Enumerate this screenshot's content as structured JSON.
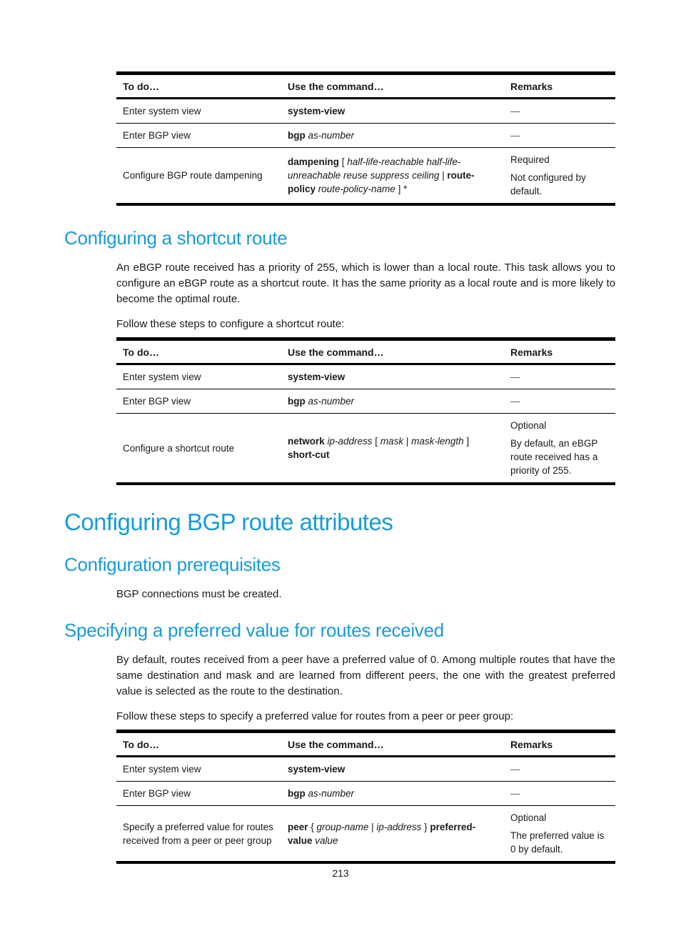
{
  "page_number": "213",
  "table_headers": {
    "todo": "To do…",
    "command": "Use the command…",
    "remarks": "Remarks"
  },
  "sections": {
    "shortcut_route": {
      "heading": "Configuring a shortcut route",
      "intro": "An eBGP route received has a priority of 255, which is lower than a local route. This task allows you to configure an eBGP route as a shortcut route. It has the same priority as a local route and is more likely to become the optimal route.",
      "steps_lead_in": "Follow these steps to configure a shortcut route:"
    },
    "bgp_route_attributes": {
      "heading": "Configuring BGP route attributes"
    },
    "configuration_prerequisites": {
      "heading": "Configuration prerequisites",
      "body": "BGP connections must be created."
    },
    "preferred_value": {
      "heading": "Specifying a preferred value for routes received",
      "intro": "By default, routes received from a peer have a preferred value of 0. Among multiple routes that have the same destination and mask and are learned from different peers, the one with the greatest preferred value is selected as the route to the destination.",
      "steps_lead_in": "Follow these steps to specify a preferred value for routes from a peer or peer group:"
    }
  },
  "tables": {
    "dampening": {
      "rows": [
        {
          "todo": "Enter system view",
          "command": [
            {
              "t": "system-view",
              "b": 1
            }
          ],
          "remarks": [
            "—"
          ]
        },
        {
          "todo": "Enter BGP view",
          "command": [
            {
              "t": "bgp ",
              "b": 1
            },
            {
              "t": "as-number",
              "i": 1
            }
          ],
          "remarks": [
            "—"
          ]
        },
        {
          "todo": "Configure BGP route dampening",
          "command": [
            {
              "t": "dampening ",
              "b": 1
            },
            {
              "t": "[ "
            },
            {
              "t": "half-life-reachable half-life-unreachable reuse suppress ceiling",
              "i": 1
            },
            {
              "t": " | "
            },
            {
              "t": "route-policy ",
              "b": 1
            },
            {
              "t": "route-policy-name",
              "i": 1
            },
            {
              "t": " ] *"
            }
          ],
          "remarks": [
            "Required",
            "Not configured by default."
          ]
        }
      ]
    },
    "shortcut": {
      "rows": [
        {
          "todo": "Enter system view",
          "command": [
            {
              "t": "system-view",
              "b": 1
            }
          ],
          "remarks": [
            "—"
          ]
        },
        {
          "todo": "Enter BGP view",
          "command": [
            {
              "t": "bgp ",
              "b": 1
            },
            {
              "t": "as-number",
              "i": 1
            }
          ],
          "remarks": [
            "—"
          ]
        },
        {
          "todo": "Configure a shortcut route",
          "command": [
            {
              "t": "network ",
              "b": 1
            },
            {
              "t": "ip-address",
              "i": 1
            },
            {
              "t": " [ "
            },
            {
              "t": "mask",
              "i": 1
            },
            {
              "t": " | "
            },
            {
              "t": "mask-length",
              "i": 1
            },
            {
              "t": " ] "
            },
            {
              "t": "short-cut",
              "b": 1
            }
          ],
          "remarks": [
            "Optional",
            "By default, an eBGP route received has a priority of 255."
          ]
        }
      ]
    },
    "preferred": {
      "rows": [
        {
          "todo": "Enter system view",
          "command": [
            {
              "t": "system-view",
              "b": 1
            }
          ],
          "remarks": [
            "—"
          ]
        },
        {
          "todo": "Enter BGP view",
          "command": [
            {
              "t": "bgp ",
              "b": 1
            },
            {
              "t": "as-number",
              "i": 1
            }
          ],
          "remarks": [
            "—"
          ]
        },
        {
          "todo": "Specify a preferred value for routes received from a peer or peer group",
          "command": [
            {
              "t": "peer ",
              "b": 1
            },
            {
              "t": "{ "
            },
            {
              "t": "group-name",
              "i": 1
            },
            {
              "t": " | "
            },
            {
              "t": "ip-address",
              "i": 1
            },
            {
              "t": " } "
            },
            {
              "t": "preferred-value ",
              "b": 1
            },
            {
              "t": "value",
              "i": 1
            }
          ],
          "remarks": [
            "Optional",
            "The preferred value is 0 by default."
          ]
        }
      ]
    }
  }
}
